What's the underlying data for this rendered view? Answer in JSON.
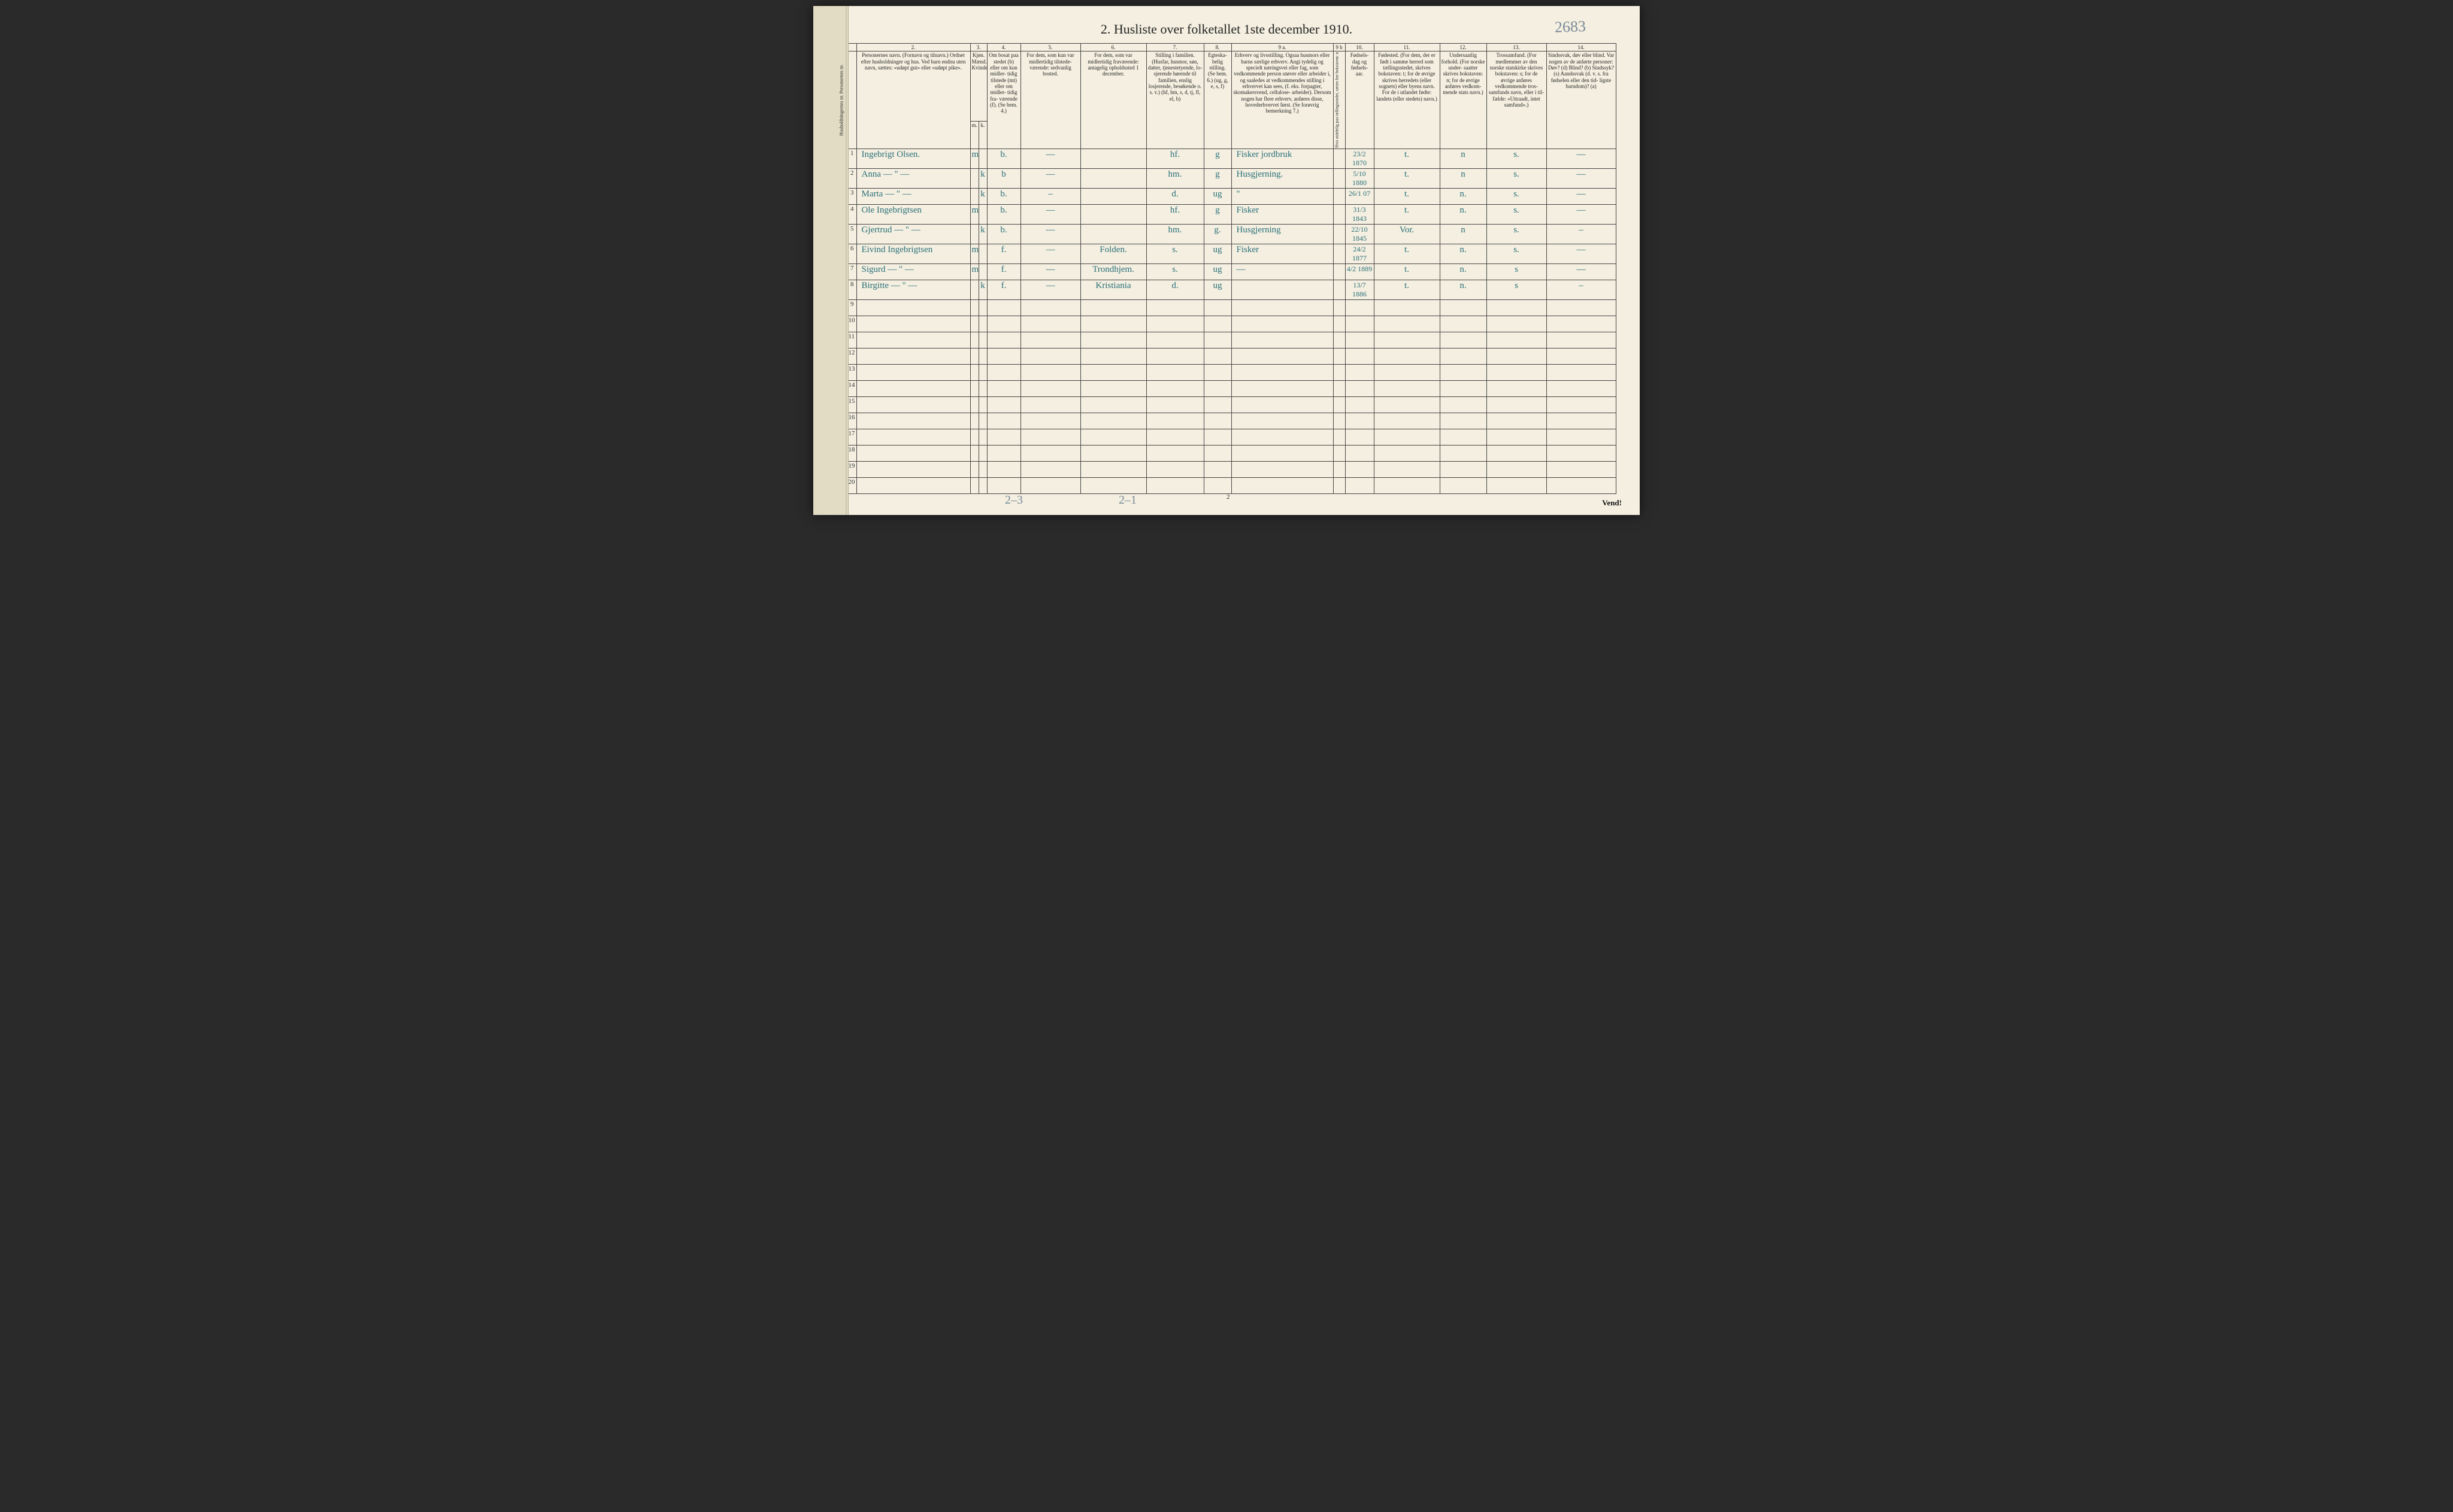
{
  "title": "2.  Husliste over folketallet 1ste december 1910.",
  "top_scribble": "2683",
  "column_numbers": [
    "1.",
    "2.",
    "3.",
    "4.",
    "5.",
    "6.",
    "7.",
    "8.",
    "9 a.",
    "9 b",
    "10.",
    "11.",
    "12.",
    "13.",
    "14."
  ],
  "sub_headers": {
    "kjon_m": "m.",
    "kjon_k": "k."
  },
  "headers": {
    "h1": "Husholdningernes nr.\nPersonernes nr.",
    "h2": "Personernes navn.\n(Fornavn og tilnavn.)\nOrdnet efter husholdninger og hus.\nVed barn endnu uten navn, sættes: «udøpt gut»\neller «udøpt pike».",
    "h3": "Kjøn.\nMænd. Kvinder.",
    "h4": "Om bosat\npaa stedet\n(b) eller om\nkun midler-\ntidig tilstede\n(mt) eller\nom midler-\ntidig fra-\nværende (f).\n(Se bem. 4.)",
    "h5": "For dem, som kun var\nmidlertidig tilstede-\nværende:\nsedvanlig bosted.",
    "h6": "For dem, som var\nmidlertidig\nfraværende:\nantagelig opholdssted\n1 december.",
    "h7": "Stilling i familien.\n(Husfar, husmor, søn,\ndatter, tjenestetyende, lo-\nsjerende hørende til familien,\nenslig losjerende, besøkende\no. s. v.)\n(hf, hm, s, d, tj, fl,\nel, b)",
    "h8": "Egteska-\nbelig\nstilling.\n(Se bem. 6.)\n(ug, g,\ne, s, f)",
    "h9a": "Erhverv og livsstilling.\nOgsaa husmors eller barns særlige erhverv.\nAngi tydelig og specielt næringsvei eller fag, som\nvedkommende person utøver eller arbeider i,\nog saaledes at vedkommendes stilling i erhvervet kan\nsees, (f. eks. forpagter, skomakersvend, cellulose-\narbeider). Dersom nogen har flere erhverv,\nanføres disse, hovederhvervet først.\n(Se forøvrig bemerkning 7.)",
    "h9b": "Hvis utdelelig\npaa tællingsstedet, sættes\nher bokstaven: n",
    "h10": "Fødsels-\ndag\nog\nfødsels-\naar.",
    "h11": "Fødested.\n(For dem, der er født\ni samme herred som\ntællingsstedet,\nskrives bokstaven: t;\nfor de øvrige skrives\nherredets (eller sognets)\neller byens navn.\nFor de i utlandet fødte:\nlandets (eller stedets)\nnavn.)",
    "h12": "Undersaatlig\nforhold.\n(For norske under-\nsaatter skrives\nbokstaven: n;\nfor de øvrige\nanføres vedkom-\nmende stats navn.)",
    "h13": "Trossamfund.\n(For medlemmer av\nden norske statskirke\nskrives bokstaven: s;\nfor de øvrige anføres\nvedkommende tros-\nsamfunds navn, eller i til-\nfælde: «Uttraadt, intet\nsamfund».)",
    "h14": "Sindssvak, døv\neller blind.\nVar nogen av de anførte\npersoner:\nDøv?       (d)\nBlind?     (b)\nSindssyk?  (s)\nAandssvak (d. v. s. fra\nfødselen eller den tid-\nligste barndom)?  (a)"
  },
  "rows": [
    {
      "hh": "1.",
      "pn": "1",
      "name": "Ingebrigt Olsen.",
      "m": "m",
      "k": "",
      "bosat": "b.",
      "c5": "—",
      "c6": "",
      "c7": "hf.",
      "c8": "g",
      "c9": "Fisker jordbruk",
      "c10": "23/2 1870",
      "c11": "t.",
      "c12": "n",
      "c13": "s.",
      "c14": "—"
    },
    {
      "hh": "",
      "pn": "2",
      "name": "Anna    —  \"  —",
      "m": "",
      "k": "k",
      "bosat": "b",
      "c5": "—",
      "c6": "",
      "c7": "hm.",
      "c8": "g",
      "c9": "Husgjerning.",
      "c10": "5/10 1880",
      "c11": "t.",
      "c12": "n",
      "c13": "s.",
      "c14": "—"
    },
    {
      "hh": "",
      "pn": "3",
      "name": "Marta   —  \"  —",
      "m": "",
      "k": "k",
      "bosat": "b.",
      "c5": "–",
      "c6": "",
      "c7": "d.",
      "c8": "ug",
      "c9": "\"",
      "c10": "26/1 07",
      "c11": "t.",
      "c12": "n.",
      "c13": "s.",
      "c14": "—"
    },
    {
      "hh": "2",
      "pn": "4",
      "name": "Ole Ingebrigtsen",
      "m": "m",
      "k": "",
      "bosat": "b.",
      "c5": "—",
      "c6": "",
      "c7": "hf.",
      "c8": "g",
      "c9": "Fisker",
      "c10": "31/3 1843",
      "c11": "t.",
      "c12": "n.",
      "c13": "s.",
      "c14": "—"
    },
    {
      "hh": "",
      "pn": "5",
      "name": "Gjertrud — \" —",
      "m": "",
      "k": "k",
      "bosat": "b.",
      "c5": "—",
      "c6": "",
      "c7": "hm.",
      "c8": "g.",
      "c9": "Husgjerning",
      "c10": "22/10 1845",
      "c11": "Vor.",
      "c12": "n",
      "c13": "s.",
      "c14": "–"
    },
    {
      "hh": "",
      "pn": "6",
      "name": "Eivind Ingebrigtsen",
      "m": "m",
      "k": "",
      "bosat": "f.",
      "c5": "—",
      "c6": "Folden.",
      "c7": "s.",
      "c8": "ug",
      "c9": "Fisker",
      "c10": "24/2 1877",
      "c11": "t.",
      "c12": "n.",
      "c13": "s.",
      "c14": "—"
    },
    {
      "hh": "",
      "pn": "7",
      "name": "Sigurd  —  \"  —",
      "m": "m",
      "k": "",
      "bosat": "f.",
      "c5": "—",
      "c6": "Trondhjem.",
      "c7": "s.",
      "c8": "ug",
      "c9": "—",
      "c10": "4/2 1889",
      "c11": "t.",
      "c12": "n.",
      "c13": "s",
      "c14": "—"
    },
    {
      "hh": "",
      "pn": "8",
      "name": "Birgitte — \" —",
      "m": "",
      "k": "k",
      "bosat": "f.",
      "c5": "—",
      "c6": "Kristiania",
      "c7": "d.",
      "c8": "ug",
      "c9": "",
      "c10": "13/7 1886",
      "c11": "t.",
      "c12": "n.",
      "c13": "s",
      "c14": "–"
    }
  ],
  "empty_rows": [
    "9",
    "10",
    "11",
    "12",
    "13",
    "14",
    "15",
    "16",
    "17",
    "18",
    "19",
    "20"
  ],
  "footer": {
    "left_mark": "2–3",
    "mid_mark": "2–1",
    "page_num": "2",
    "vend": "Vend!"
  },
  "colors": {
    "paper": "#f4efe0",
    "ink_print": "#222222",
    "ink_script": "#2a6f7a",
    "pencil": "#7a8a98",
    "border": "#444444"
  }
}
